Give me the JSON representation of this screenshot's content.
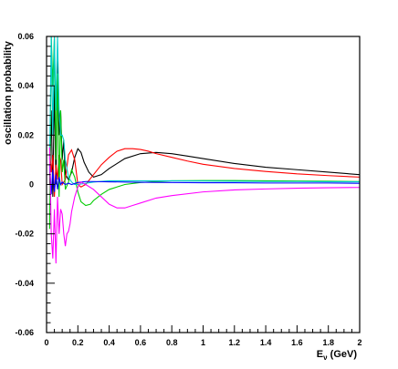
{
  "chart_data": {
    "type": "line",
    "title": "",
    "xlabel": "E_ν (GeV)",
    "xlabel_main": "E",
    "xlabel_sub": "ν",
    "xlabel_unit": " (GeV)",
    "ylabel": "oscillation probability",
    "xlim": [
      0,
      2
    ],
    "ylim": [
      -0.06,
      0.06
    ],
    "x_ticks": [
      0,
      0.2,
      0.4,
      0.6,
      0.8,
      1,
      1.2,
      1.4,
      1.6,
      1.8,
      2
    ],
    "x_tick_labels": [
      "0",
      "0.2",
      "0.4",
      "0.6",
      "0.8",
      "1",
      "1.2",
      "1.4",
      "1.6",
      "1.8",
      "2"
    ],
    "y_ticks": [
      -0.06,
      -0.04,
      -0.02,
      0,
      0.02,
      0.04,
      0.06
    ],
    "y_tick_labels": [
      "-0.06",
      "-0.04",
      "-0.02",
      "0",
      "0.02",
      "0.04",
      "0.06"
    ],
    "grid": false,
    "legend": "none",
    "series": [
      {
        "color": "#000000",
        "x": [
          0.02,
          0.03,
          0.04,
          0.05,
          0.06,
          0.07,
          0.08,
          0.09,
          0.1,
          0.11,
          0.12,
          0.14,
          0.16,
          0.18,
          0.2,
          0.22,
          0.24,
          0.27,
          0.3,
          0.35,
          0.4,
          0.5,
          0.6,
          0.7,
          0.8,
          0.9,
          1.0,
          1.2,
          1.4,
          1.6,
          1.8,
          2.0
        ],
        "y": [
          0.0,
          0.03,
          -0.005,
          0.04,
          0.0,
          0.05,
          0.02,
          0.03,
          0.01,
          0.018,
          0.004,
          0.002,
          0.005,
          0.011,
          0.0145,
          0.013,
          0.009,
          0.005,
          0.003,
          0.004,
          0.0065,
          0.0105,
          0.0125,
          0.013,
          0.0125,
          0.0115,
          0.0105,
          0.0085,
          0.007,
          0.006,
          0.005,
          0.004
        ]
      },
      {
        "color": "#ff0000",
        "x": [
          0.02,
          0.03,
          0.04,
          0.05,
          0.06,
          0.07,
          0.08,
          0.09,
          0.1,
          0.12,
          0.14,
          0.16,
          0.18,
          0.2,
          0.22,
          0.25,
          0.3,
          0.35,
          0.4,
          0.45,
          0.5,
          0.55,
          0.6,
          0.65,
          0.7,
          0.8,
          0.9,
          1.0,
          1.2,
          1.4,
          1.6,
          1.8,
          2.0
        ],
        "y": [
          0.015,
          0.005,
          0.012,
          -0.005,
          0.008,
          0.002,
          0.012,
          0.01,
          0.0,
          0.002,
          0.012,
          0.014,
          0.01,
          0.0,
          -0.001,
          0.0,
          0.004,
          0.008,
          0.011,
          0.0135,
          0.0145,
          0.0145,
          0.0142,
          0.0135,
          0.0125,
          0.011,
          0.0095,
          0.0082,
          0.0065,
          0.0053,
          0.0043,
          0.0036,
          0.003
        ]
      },
      {
        "color": "#00cc00",
        "x": [
          0.02,
          0.03,
          0.04,
          0.05,
          0.06,
          0.07,
          0.08,
          0.09,
          0.1,
          0.11,
          0.12,
          0.14,
          0.16,
          0.18,
          0.2,
          0.22,
          0.25,
          0.28,
          0.3,
          0.35,
          0.4,
          0.5,
          0.6,
          0.7,
          0.8,
          1.0,
          1.2,
          1.4,
          1.6,
          1.8,
          2.0
        ],
        "y": [
          -0.018,
          0.06,
          0.04,
          0.06,
          0.01,
          0.045,
          -0.005,
          0.03,
          0.005,
          0.01,
          -0.002,
          0.001,
          0.006,
          0.003,
          -0.003,
          -0.007,
          -0.0085,
          -0.008,
          -0.0065,
          -0.004,
          -0.002,
          0.0,
          0.0008,
          0.0012,
          0.0015,
          0.0016,
          0.0016,
          0.0015,
          0.0014,
          0.0013,
          0.0012
        ]
      },
      {
        "color": "#00cccc",
        "x": [
          0.02,
          0.03,
          0.04,
          0.05,
          0.06,
          0.07,
          0.08,
          0.09,
          0.1,
          0.11,
          0.12,
          0.14,
          0.16,
          0.18,
          0.2,
          0.25,
          0.3,
          0.4,
          0.5,
          0.6,
          0.8,
          1.0,
          1.2,
          1.4,
          1.6,
          1.8,
          2.0
        ],
        "y": [
          0.01,
          0.06,
          0.02,
          0.06,
          0.03,
          0.06,
          0.03,
          0.02,
          0.02,
          0.018,
          0.01,
          0.003,
          0.001,
          0.0,
          0.0,
          0.0005,
          0.001,
          0.0015,
          0.0015,
          0.0015,
          0.0015,
          0.0014,
          0.0013,
          0.0012,
          0.0012,
          0.0011,
          0.0011
        ]
      },
      {
        "color": "#0000ff",
        "x": [
          0.02,
          0.03,
          0.04,
          0.05,
          0.06,
          0.07,
          0.08,
          0.09,
          0.1,
          0.12,
          0.14,
          0.16,
          0.2,
          0.25,
          0.3,
          0.4,
          0.5,
          0.6,
          0.8,
          1.0,
          1.2,
          1.4,
          1.6,
          1.8,
          2.0
        ],
        "y": [
          0.008,
          -0.004,
          0.006,
          -0.003,
          0.004,
          -0.002,
          0.003,
          0.0,
          0.001,
          0.0,
          0.0005,
          0.0,
          0.0008,
          0.0012,
          0.0012,
          0.0011,
          0.001,
          0.0009,
          0.0008,
          0.0007,
          0.0007,
          0.0006,
          0.0006,
          0.0006,
          0.0005
        ]
      },
      {
        "color": "#ff00ff",
        "x": [
          0.02,
          0.03,
          0.04,
          0.05,
          0.06,
          0.07,
          0.08,
          0.09,
          0.1,
          0.11,
          0.12,
          0.13,
          0.14,
          0.15,
          0.16,
          0.18,
          0.2,
          0.22,
          0.25,
          0.3,
          0.35,
          0.4,
          0.45,
          0.5,
          0.55,
          0.6,
          0.7,
          0.8,
          1.0,
          1.2,
          1.4,
          1.6,
          1.8,
          2.0
        ],
        "y": [
          0.015,
          -0.02,
          -0.03,
          -0.01,
          -0.032,
          -0.005,
          -0.02,
          -0.01,
          -0.012,
          -0.02,
          -0.025,
          -0.02,
          -0.019,
          -0.016,
          -0.011,
          -0.005,
          -0.001,
          0.001,
          0.0,
          -0.002,
          -0.005,
          -0.008,
          -0.0095,
          -0.0095,
          -0.0085,
          -0.0075,
          -0.0055,
          -0.0045,
          -0.003,
          -0.0022,
          -0.0018,
          -0.0015,
          -0.0013,
          -0.0012
        ]
      }
    ]
  }
}
